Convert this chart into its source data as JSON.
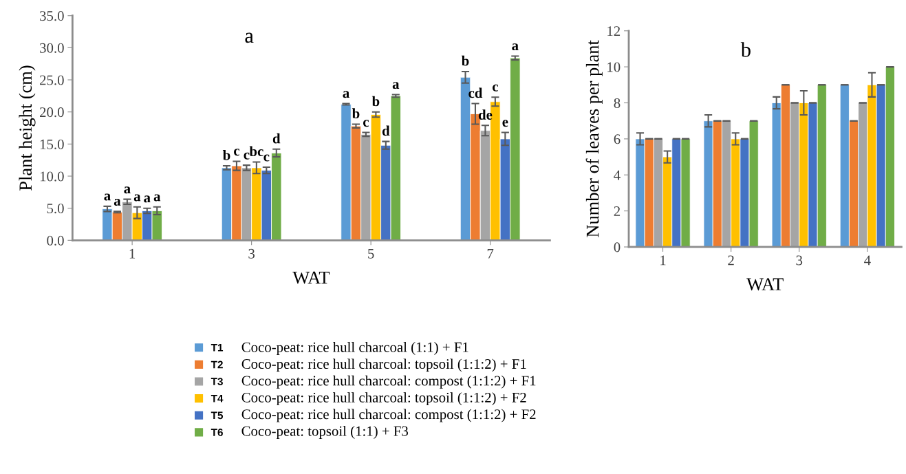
{
  "chart_data": [
    {
      "type": "bar",
      "title": "a",
      "xlabel": "WAT",
      "ylabel": "Plant height (cm)",
      "categories": [
        "1",
        "3",
        "5",
        "7"
      ],
      "ylim": [
        0,
        35
      ],
      "yticks": [
        {
          "value": 0,
          "label": "0.0"
        },
        {
          "value": 5,
          "label": "5.0"
        },
        {
          "value": 10,
          "label": "10.0"
        },
        {
          "value": 15,
          "label": "15.0"
        },
        {
          "value": 20,
          "label": "20.0"
        },
        {
          "value": 25,
          "label": "25.0"
        },
        {
          "value": 30,
          "label": "30.0"
        },
        {
          "value": 35,
          "label": "35.0"
        }
      ],
      "grid": false,
      "legend": "bottom",
      "series": [
        {
          "name": "T1",
          "color": "#5b9bd5",
          "values": [
            4.9,
            11.3,
            21.2,
            25.4
          ],
          "errors": [
            0.4,
            0.3,
            0.1,
            0.9
          ],
          "value_labels": [
            "a",
            "b",
            "a",
            "b"
          ]
        },
        {
          "name": "T2",
          "color": "#ed7d31",
          "values": [
            4.4,
            11.6,
            17.8,
            19.7
          ],
          "errors": [
            0.1,
            0.7,
            0.3,
            1.6
          ],
          "value_labels": [
            "a",
            "c",
            "b",
            "cd"
          ]
        },
        {
          "name": "T3",
          "color": "#a5a5a5",
          "values": [
            6.0,
            11.3,
            16.5,
            17.1
          ],
          "errors": [
            0.4,
            0.4,
            0.3,
            0.8
          ],
          "value_labels": [
            "a",
            "c",
            "c",
            "de"
          ]
        },
        {
          "name": "T4",
          "color": "#ffc000",
          "values": [
            4.3,
            11.3,
            19.6,
            21.6
          ],
          "errors": [
            0.9,
            0.9,
            0.4,
            0.7
          ],
          "value_labels": [
            "a",
            "bc",
            "b",
            "c"
          ]
        },
        {
          "name": "T5",
          "color": "#4472c4",
          "values": [
            4.6,
            10.9,
            14.8,
            15.8
          ],
          "errors": [
            0.4,
            0.5,
            0.6,
            1.0
          ],
          "value_labels": [
            "a",
            "c",
            "d",
            "e"
          ]
        },
        {
          "name": "T6",
          "color": "#70ad47",
          "values": [
            4.6,
            13.6,
            22.5,
            28.4
          ],
          "errors": [
            0.6,
            0.6,
            0.2,
            0.3
          ],
          "value_labels": [
            "a",
            "d",
            "a",
            "a"
          ]
        }
      ],
      "annotations": [
        "Coco-peat: rice hull charcoal (1:1) + F1",
        "Coco-peat: rice hull charcoal: topsoil (1:1:2) + F1",
        "Coco-peat: rice hull charcoal: compost (1:1:2) + F1",
        "Coco-peat: rice hull charcoal: topsoil (1:1:2) + F2",
        "Coco-peat: rice hull charcoal: compost (1:1:2) + F2",
        "Coco-peat: topsoil (1:1) + F3"
      ]
    },
    {
      "type": "bar",
      "title": "b",
      "xlabel": "WAT",
      "ylabel": "Number of leaves per plant",
      "categories": [
        "1",
        "2",
        "3",
        "4"
      ],
      "ylim": [
        0,
        12
      ],
      "yticks": [
        0,
        2,
        4,
        6,
        8,
        10,
        12
      ],
      "grid": false,
      "series": [
        {
          "color": "#5b9bd5",
          "values": [
            6,
            7,
            8,
            9
          ],
          "errors": [
            0.33,
            0.33,
            0.33,
            0
          ]
        },
        {
          "color": "#ed7d31",
          "values": [
            6,
            7,
            9,
            7
          ],
          "errors": [
            0,
            0,
            0,
            0
          ]
        },
        {
          "color": "#a5a5a5",
          "values": [
            6,
            7,
            8,
            8
          ],
          "errors": [
            0,
            0,
            0,
            0
          ]
        },
        {
          "color": "#ffc000",
          "values": [
            5,
            6,
            8,
            9
          ],
          "errors": [
            0.33,
            0.33,
            0.67,
            0.67
          ]
        },
        {
          "color": "#4472c4",
          "values": [
            6,
            6,
            8,
            9
          ],
          "errors": [
            0,
            0,
            0,
            0
          ]
        },
        {
          "color": "#70ad47",
          "values": [
            6,
            7,
            9,
            10
          ],
          "errors": [
            0,
            0,
            0,
            0
          ]
        }
      ]
    }
  ]
}
